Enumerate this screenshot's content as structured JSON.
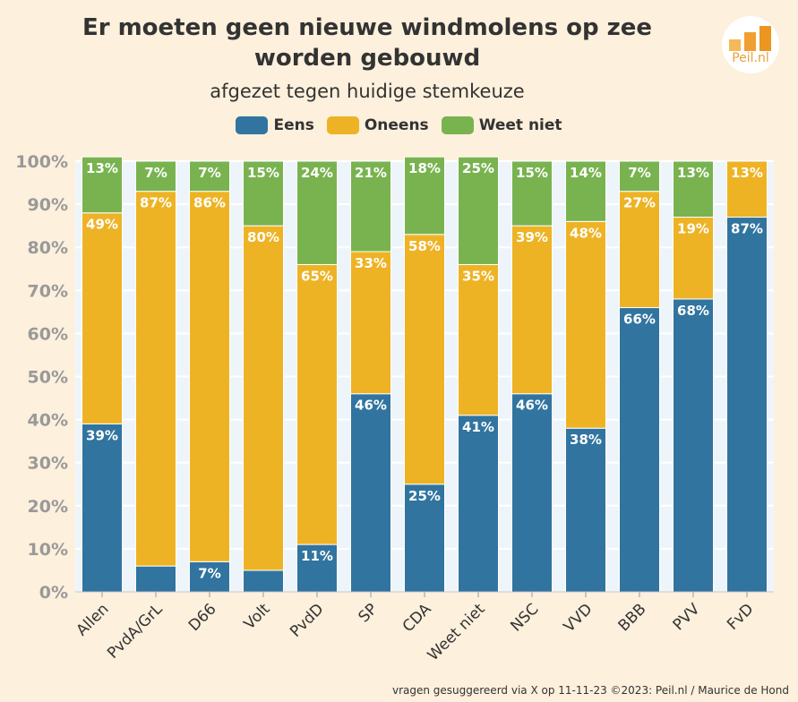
{
  "chart_data": {
    "type": "bar",
    "stacked": true,
    "title": "Er moeten geen nieuwe windmolens op zee worden gebouwd",
    "subtitle": "afgezet tegen huidige stemkeuze",
    "categories": [
      "Allen",
      "PvdA/GrL",
      "D66",
      "Volt",
      "PvdD",
      "SP",
      "CDA",
      "Weet niet",
      "NSC",
      "VVD",
      "BBB",
      "PVV",
      "FvD"
    ],
    "series": [
      {
        "name": "Eens",
        "color": "#31749f",
        "values": [
          39,
          6,
          7,
          5,
          11,
          46,
          25,
          41,
          46,
          38,
          66,
          68,
          87
        ],
        "labels": [
          "39%",
          "",
          "7%",
          "",
          "11%",
          "46%",
          "25%",
          "41%",
          "46%",
          "38%",
          "66%",
          "68%",
          "87%"
        ]
      },
      {
        "name": "Oneens",
        "color": "#eeb325",
        "values": [
          49,
          87,
          86,
          80,
          65,
          33,
          58,
          35,
          39,
          48,
          27,
          19,
          13
        ],
        "labels": [
          "49%",
          "87%",
          "86%",
          "80%",
          "65%",
          "33%",
          "58%",
          "35%",
          "39%",
          "48%",
          "27%",
          "19%",
          "13%"
        ]
      },
      {
        "name": "Weet niet",
        "color": "#79b350",
        "values": [
          13,
          7,
          7,
          15,
          24,
          21,
          18,
          25,
          15,
          14,
          7,
          13,
          0
        ],
        "labels": [
          "13%",
          "7%",
          "7%",
          "15%",
          "24%",
          "21%",
          "18%",
          "25%",
          "15%",
          "14%",
          "7%",
          "13%",
          ""
        ]
      }
    ],
    "yticks": [
      "0%",
      "10%",
      "20%",
      "30%",
      "40%",
      "50%",
      "60%",
      "70%",
      "80%",
      "90%",
      "100%"
    ],
    "ylim": [
      0,
      100
    ],
    "xlabel": "",
    "ylabel": "",
    "legend_position": "top-center"
  },
  "logo": {
    "text": "Peil.nl"
  },
  "footer": "vragen gesuggereerd via X op 11-11-23 ©2023: Peil.nl / Maurice de Hond"
}
